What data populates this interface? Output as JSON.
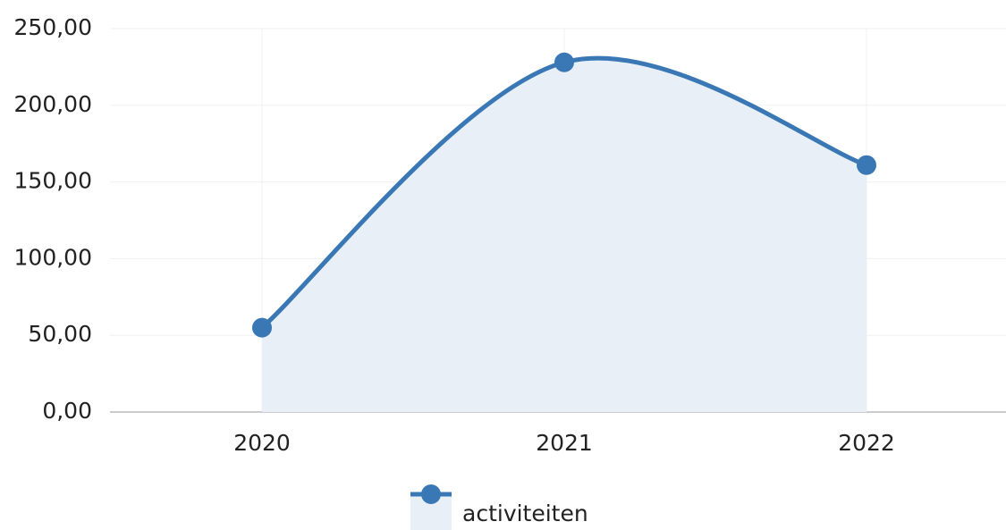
{
  "chart_data": {
    "type": "area",
    "categories": [
      "2020",
      "2021",
      "2022"
    ],
    "series": [
      {
        "name": "activiteiten",
        "color": "#3a78b5",
        "fill": "#e8eff7",
        "values": [
          55,
          228,
          161
        ]
      }
    ],
    "ylim": [
      0,
      250
    ],
    "yticks": [
      {
        "value": 0,
        "label": "0,00"
      },
      {
        "value": 50,
        "label": "50,00"
      },
      {
        "value": 100,
        "label": "100,00"
      },
      {
        "value": 150,
        "label": "150,00"
      },
      {
        "value": 200,
        "label": "200,00"
      },
      {
        "value": 250,
        "label": "250,00"
      }
    ],
    "grid": true,
    "legend": "bottom"
  }
}
